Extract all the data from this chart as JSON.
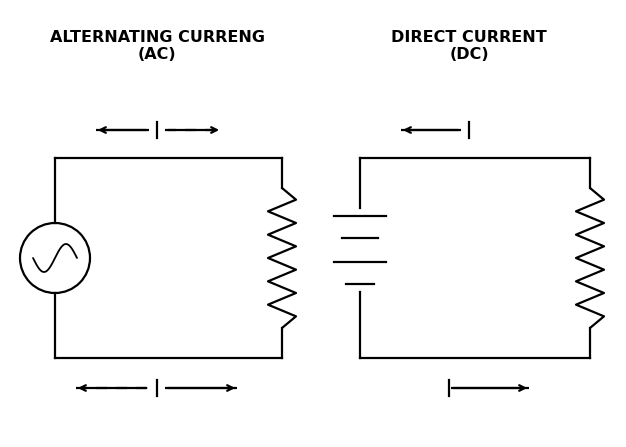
{
  "bg_color": "#ffffff",
  "line_color": "#000000",
  "title_ac": "ALTERNATING CURRENG\n(AC)",
  "title_dc": "DIRECT CURRENT\n(DC)",
  "title_fontsize": 11.5,
  "title_fontweight": "bold",
  "fig_width": 6.26,
  "fig_height": 4.47,
  "lw": 1.6
}
